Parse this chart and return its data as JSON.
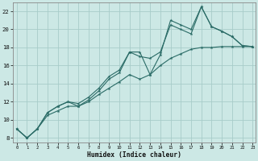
{
  "xlabel": "Humidex (Indice chaleur)",
  "xlim": [
    -0.4,
    23.3
  ],
  "ylim": [
    7.5,
    23.0
  ],
  "yticks": [
    8,
    10,
    12,
    14,
    16,
    18,
    20,
    22
  ],
  "xticks": [
    0,
    1,
    2,
    3,
    4,
    5,
    6,
    7,
    8,
    9,
    10,
    11,
    12,
    13,
    14,
    15,
    16,
    17,
    18,
    19,
    20,
    21,
    22,
    23
  ],
  "bg_color": "#cce8e5",
  "grid_color": "#a8ccc9",
  "line_color": "#2a6b66",
  "s1_x": [
    0,
    1,
    2,
    3,
    4,
    5,
    6,
    7,
    8,
    9,
    10,
    11,
    12,
    13,
    14,
    15,
    16,
    17,
    18,
    19,
    20,
    21,
    22,
    23
  ],
  "s1_y": [
    9.0,
    8.0,
    9.0,
    10.8,
    11.5,
    12.0,
    11.5,
    12.2,
    13.2,
    14.5,
    15.2,
    17.5,
    17.5,
    15.0,
    17.2,
    21.0,
    20.5,
    20.0,
    22.5,
    20.3,
    19.8,
    19.2,
    18.2,
    18.1
  ],
  "s2_x": [
    0,
    1,
    2,
    3,
    4,
    5,
    6,
    7,
    8,
    9,
    10,
    11,
    12,
    13,
    14,
    15,
    16,
    17,
    18,
    19,
    20,
    21,
    22,
    23
  ],
  "s2_y": [
    9.0,
    8.0,
    9.0,
    10.8,
    11.5,
    12.0,
    11.8,
    12.5,
    13.5,
    14.8,
    15.5,
    17.5,
    17.0,
    16.8,
    17.5,
    20.5,
    20.0,
    19.5,
    22.5,
    20.3,
    19.8,
    19.2,
    18.2,
    18.1
  ],
  "s3_x": [
    0,
    1,
    2,
    3,
    4,
    5,
    6,
    7,
    8,
    9,
    10,
    11,
    12,
    13,
    14,
    15,
    16,
    17,
    18,
    19,
    20,
    21,
    22,
    23
  ],
  "s3_y": [
    9.0,
    8.0,
    9.0,
    10.5,
    11.0,
    11.5,
    11.5,
    12.0,
    12.8,
    13.5,
    14.2,
    15.0,
    14.5,
    15.0,
    16.0,
    16.8,
    17.3,
    17.8,
    18.0,
    18.0,
    18.1,
    18.1,
    18.1,
    18.1
  ]
}
